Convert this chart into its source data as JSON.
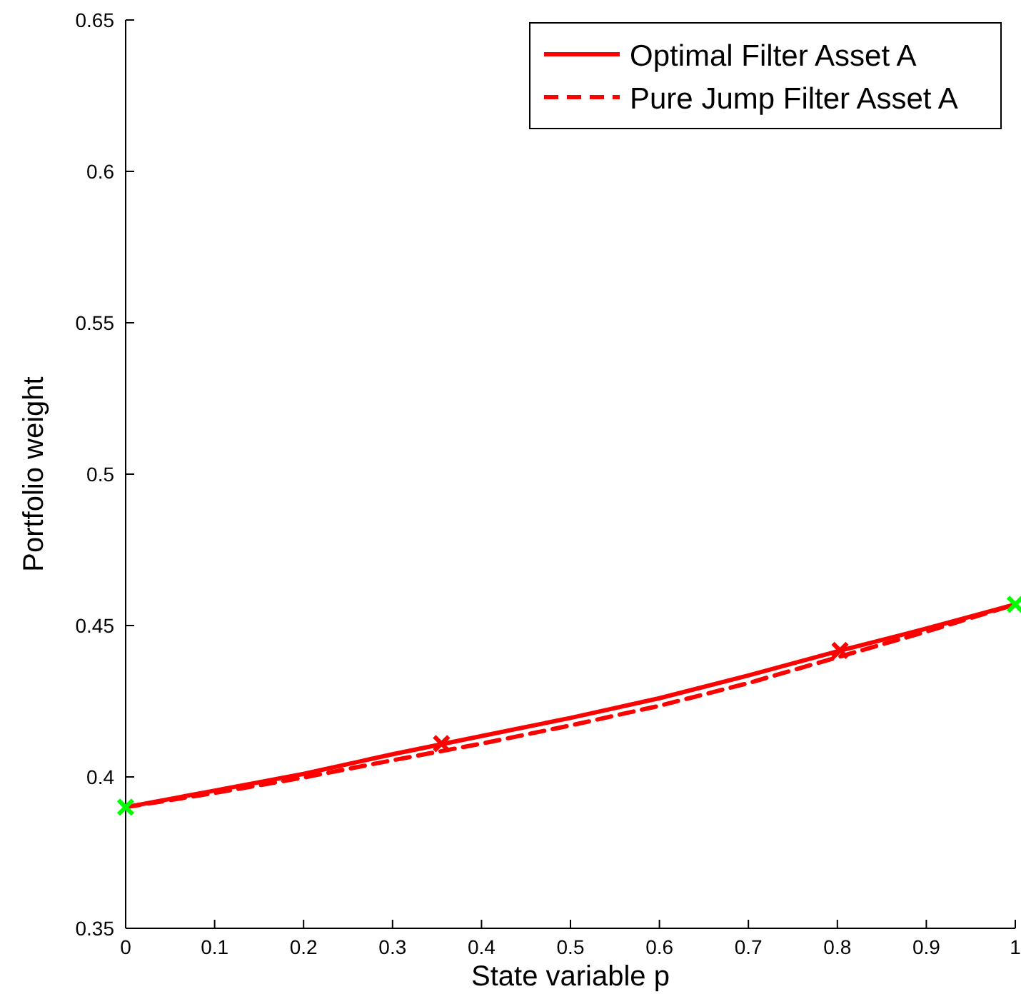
{
  "chart_data": {
    "type": "line",
    "xlabel": "State variable p",
    "ylabel": "Portfolio weight",
    "xlim": [
      0,
      1
    ],
    "xticks": [
      0,
      0.1,
      0.2,
      0.3,
      0.4,
      0.5,
      0.6,
      0.7,
      0.8,
      0.9,
      1
    ],
    "ylim": [
      0.35,
      0.65
    ],
    "yticks": [
      0.35,
      0.4,
      0.45,
      0.5,
      0.55,
      0.6,
      0.65
    ],
    "grid": false,
    "legend": "top right",
    "series": [
      {
        "name": "Optimal Filter Asset A",
        "color": "#ff0000",
        "line_style": "solid",
        "x": [
          0,
          0.1,
          0.2,
          0.3,
          0.4,
          0.5,
          0.6,
          0.7,
          0.8,
          0.9,
          1
        ],
        "values": [
          0.39,
          0.3955,
          0.401,
          0.4075,
          0.4135,
          0.4195,
          0.426,
          0.4335,
          0.4415,
          0.449,
          0.457
        ]
      },
      {
        "name": "Pure Jump Filter Asset A",
        "color": "#ff0000",
        "line_style": "dashed",
        "x": [
          0,
          0.1,
          0.2,
          0.3,
          0.4,
          0.5,
          0.6,
          0.7,
          0.8,
          0.9,
          1
        ],
        "values": [
          0.39,
          0.3947,
          0.3998,
          0.4055,
          0.411,
          0.417,
          0.4235,
          0.431,
          0.4395,
          0.448,
          0.457
        ]
      },
      {
        "type": "scatter",
        "marker": "cross",
        "color": "#00ff00",
        "x": [
          0,
          1
        ],
        "values": [
          0.39,
          0.457
        ]
      },
      {
        "type": "scatter",
        "marker": "cross",
        "color": "#ff0000",
        "x": [
          0.355,
          0.803
        ],
        "values": [
          0.411,
          0.4418
        ]
      }
    ]
  }
}
